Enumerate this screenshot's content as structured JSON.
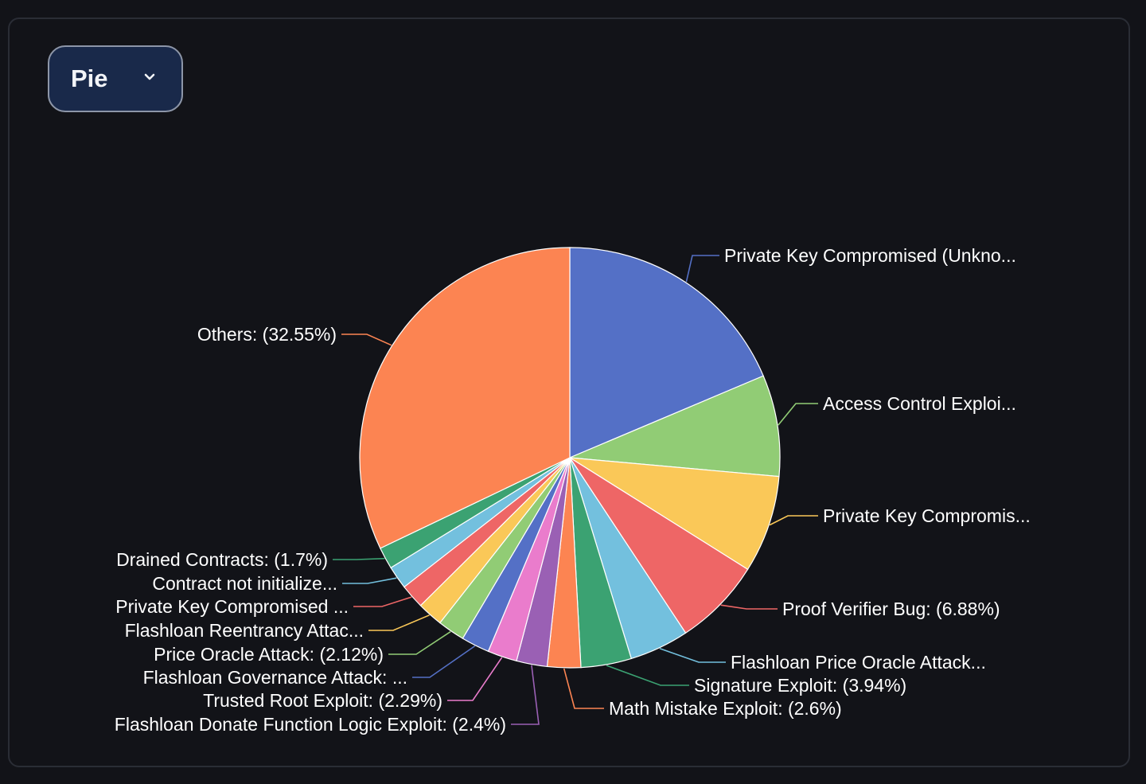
{
  "chart_type_selector": {
    "value": "Pie"
  },
  "chart_data": {
    "type": "pie",
    "title": "",
    "slices": [
      {
        "label": "Private Key Compromised (Unkno...",
        "value": 18.9,
        "color": "#5470c6"
      },
      {
        "label": "Access Control Exploi...",
        "value": 7.9,
        "color": "#91cc75"
      },
      {
        "label": "Private Key Compromis...",
        "value": 7.6,
        "color": "#fac858"
      },
      {
        "label": "Proof Verifier Bug: (6.88%)",
        "value": 6.88,
        "color": "#ee6666"
      },
      {
        "label": "Flashloan Price Oracle Attack...",
        "value": 4.63,
        "color": "#73c0de"
      },
      {
        "label": "Signature Exploit: (3.94%)",
        "value": 3.94,
        "color": "#3ba272"
      },
      {
        "label": "Math Mistake Exploit: (2.6%)",
        "value": 2.6,
        "color": "#fc8452"
      },
      {
        "label": "Flashloan Donate Function Logic Exploit: (2.4%)",
        "value": 2.4,
        "color": "#9a60b4"
      },
      {
        "label": "Trusted Root Exploit: (2.29%)",
        "value": 2.29,
        "color": "#ea7ccc"
      },
      {
        "label": "Flashloan Governance Attack: ...",
        "value": 2.2,
        "color": "#5470c6"
      },
      {
        "label": "Price Oracle Attack: (2.12%)",
        "value": 2.12,
        "color": "#91cc75"
      },
      {
        "label": "Flashloan Reentrancy Attac...",
        "value": 2.0,
        "color": "#fac858"
      },
      {
        "label": "Private Key Compromised ...",
        "value": 1.9,
        "color": "#ee6666"
      },
      {
        "label": "Contract not initialize...",
        "value": 1.8,
        "color": "#73c0de"
      },
      {
        "label": "Drained Contracts: (1.7%)",
        "value": 1.7,
        "color": "#3ba272"
      },
      {
        "label": "Others: (32.55%)",
        "value": 32.55,
        "color": "#fc8452"
      }
    ]
  }
}
